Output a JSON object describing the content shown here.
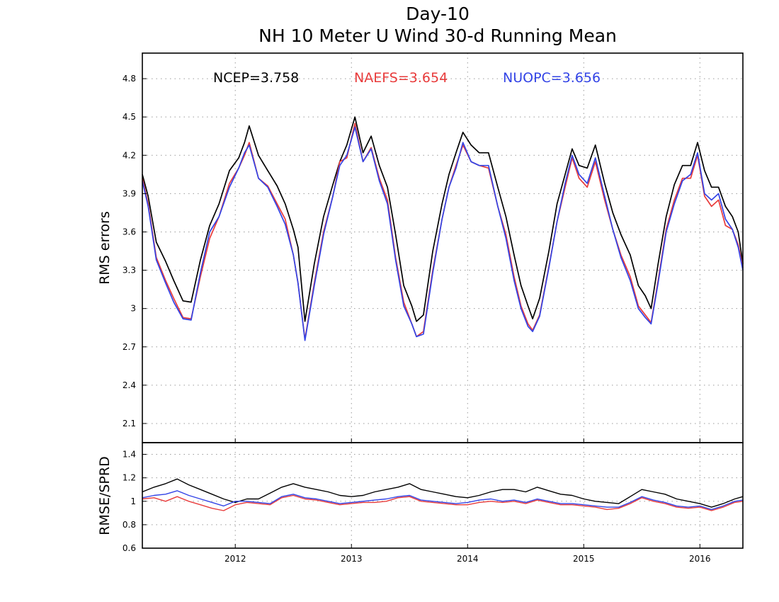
{
  "chart_data": [
    {
      "type": "line",
      "title": "Day-10",
      "subtitle": "NH 10 Meter U Wind 30-d Running Mean",
      "ylabel": "RMS errors",
      "xlabel": "",
      "xlim": [
        2011.2,
        2016.37
      ],
      "ylim": [
        1.95,
        5.0
      ],
      "yticks": [
        "2.1",
        "2.4",
        "2.7",
        "3",
        "3.3",
        "3.6",
        "3.9",
        "4.2",
        "4.5",
        "4.8"
      ],
      "xticks": [
        "2012",
        "2013",
        "2014",
        "2015",
        "2016"
      ],
      "grid": true,
      "legend": "top",
      "series": [
        {
          "name": "NCEP",
          "stat_label": "NCEP=3.758",
          "color": "#000000",
          "x": [
            2011.2,
            2011.25,
            2011.32,
            2011.4,
            2011.47,
            2011.55,
            2011.62,
            2011.7,
            2011.78,
            2011.86,
            2011.95,
            2012.03,
            2012.08,
            2012.12,
            2012.2,
            2012.28,
            2012.36,
            2012.43,
            2012.5,
            2012.54,
            2012.6,
            2012.68,
            2012.76,
            2012.84,
            2012.9,
            2012.96,
            2013.03,
            2013.1,
            2013.17,
            2013.24,
            2013.31,
            2013.38,
            2013.45,
            2013.52,
            2013.56,
            2013.62,
            2013.7,
            2013.78,
            2013.84,
            2013.9,
            2013.96,
            2014.03,
            2014.1,
            2014.18,
            2014.26,
            2014.33,
            2014.4,
            2014.46,
            2014.52,
            2014.56,
            2014.62,
            2014.7,
            2014.77,
            2014.84,
            2014.9,
            2014.96,
            2015.03,
            2015.1,
            2015.18,
            2015.25,
            2015.32,
            2015.4,
            2015.47,
            2015.53,
            2015.58,
            2015.64,
            2015.71,
            2015.78,
            2015.85,
            2015.92,
            2015.98,
            2016.04,
            2016.1,
            2016.16,
            2016.22,
            2016.28,
            2016.33,
            2016.37
          ],
          "y": [
            4.05,
            3.88,
            3.52,
            3.37,
            3.22,
            3.06,
            3.05,
            3.38,
            3.65,
            3.82,
            4.08,
            4.18,
            4.3,
            4.43,
            4.2,
            4.08,
            3.96,
            3.82,
            3.62,
            3.48,
            2.9,
            3.35,
            3.72,
            3.97,
            4.15,
            4.28,
            4.5,
            4.22,
            4.35,
            4.12,
            3.95,
            3.58,
            3.18,
            3.02,
            2.9,
            2.95,
            3.45,
            3.82,
            4.05,
            4.22,
            4.38,
            4.28,
            4.22,
            4.22,
            3.95,
            3.72,
            3.42,
            3.18,
            3.02,
            2.92,
            3.08,
            3.45,
            3.82,
            4.05,
            4.25,
            4.12,
            4.1,
            4.28,
            3.98,
            3.75,
            3.58,
            3.42,
            3.18,
            3.1,
            3.0,
            3.35,
            3.72,
            3.97,
            4.12,
            4.12,
            4.3,
            4.08,
            3.95,
            3.95,
            3.8,
            3.72,
            3.6,
            3.35
          ]
        },
        {
          "name": "NAEFS",
          "stat_label": "NAEFS=3.654",
          "color": "#e83b3b",
          "x": [
            2011.2,
            2011.25,
            2011.32,
            2011.4,
            2011.47,
            2011.55,
            2011.62,
            2011.7,
            2011.78,
            2011.86,
            2011.95,
            2012.03,
            2012.08,
            2012.12,
            2012.2,
            2012.28,
            2012.36,
            2012.43,
            2012.5,
            2012.54,
            2012.6,
            2012.68,
            2012.76,
            2012.84,
            2012.9,
            2012.96,
            2013.03,
            2013.1,
            2013.17,
            2013.24,
            2013.31,
            2013.38,
            2013.45,
            2013.52,
            2013.56,
            2013.62,
            2013.7,
            2013.78,
            2013.84,
            2013.9,
            2013.96,
            2014.03,
            2014.1,
            2014.18,
            2014.26,
            2014.33,
            2014.4,
            2014.46,
            2014.52,
            2014.56,
            2014.62,
            2014.7,
            2014.77,
            2014.84,
            2014.9,
            2014.96,
            2015.03,
            2015.1,
            2015.18,
            2015.25,
            2015.32,
            2015.4,
            2015.47,
            2015.53,
            2015.58,
            2015.64,
            2015.71,
            2015.78,
            2015.85,
            2015.92,
            2015.98,
            2016.04,
            2016.1,
            2016.16,
            2016.22,
            2016.28,
            2016.33,
            2016.37
          ],
          "y": [
            4.02,
            3.82,
            3.4,
            3.22,
            3.08,
            2.93,
            2.92,
            3.25,
            3.55,
            3.72,
            3.98,
            4.1,
            4.2,
            4.3,
            4.02,
            3.96,
            3.82,
            3.7,
            3.42,
            3.2,
            2.76,
            3.2,
            3.6,
            3.88,
            4.15,
            4.18,
            4.45,
            4.15,
            4.26,
            4.02,
            3.85,
            3.4,
            3.05,
            2.88,
            2.78,
            2.82,
            3.3,
            3.7,
            3.95,
            4.12,
            4.28,
            4.15,
            4.12,
            4.1,
            3.8,
            3.58,
            3.25,
            3.02,
            2.88,
            2.83,
            2.95,
            3.33,
            3.68,
            3.95,
            4.18,
            4.02,
            3.95,
            4.15,
            3.85,
            3.62,
            3.42,
            3.25,
            3.02,
            2.95,
            2.89,
            3.22,
            3.62,
            3.85,
            4.02,
            4.02,
            4.2,
            3.88,
            3.8,
            3.85,
            3.65,
            3.62,
            3.5,
            3.32
          ]
        },
        {
          "name": "NUOPC",
          "stat_label": "NUOPC=3.656",
          "color": "#3344e6",
          "x": [
            2011.2,
            2011.25,
            2011.32,
            2011.4,
            2011.47,
            2011.55,
            2011.62,
            2011.7,
            2011.78,
            2011.86,
            2011.95,
            2012.03,
            2012.08,
            2012.12,
            2012.2,
            2012.28,
            2012.36,
            2012.43,
            2012.5,
            2012.54,
            2012.6,
            2012.68,
            2012.76,
            2012.84,
            2012.9,
            2012.96,
            2013.03,
            2013.1,
            2013.17,
            2013.24,
            2013.31,
            2013.38,
            2013.45,
            2013.52,
            2013.56,
            2013.62,
            2013.7,
            2013.78,
            2013.84,
            2013.9,
            2013.96,
            2014.03,
            2014.1,
            2014.18,
            2014.26,
            2014.33,
            2014.4,
            2014.46,
            2014.52,
            2014.56,
            2014.62,
            2014.7,
            2014.77,
            2014.84,
            2014.9,
            2014.96,
            2015.03,
            2015.1,
            2015.18,
            2015.25,
            2015.32,
            2015.4,
            2015.47,
            2015.53,
            2015.58,
            2015.64,
            2015.71,
            2015.78,
            2015.85,
            2015.92,
            2015.98,
            2016.04,
            2016.1,
            2016.16,
            2016.22,
            2016.28,
            2016.33,
            2016.37
          ],
          "y": [
            4.0,
            3.8,
            3.38,
            3.2,
            3.05,
            2.92,
            2.91,
            3.28,
            3.6,
            3.72,
            3.95,
            4.1,
            4.22,
            4.28,
            4.02,
            3.95,
            3.8,
            3.66,
            3.42,
            3.2,
            2.75,
            3.18,
            3.58,
            3.88,
            4.12,
            4.2,
            4.42,
            4.15,
            4.25,
            4.0,
            3.82,
            3.38,
            3.02,
            2.88,
            2.78,
            2.8,
            3.28,
            3.7,
            3.95,
            4.1,
            4.3,
            4.15,
            4.12,
            4.12,
            3.8,
            3.55,
            3.22,
            3.0,
            2.86,
            2.82,
            2.94,
            3.32,
            3.68,
            3.98,
            4.2,
            4.05,
            3.98,
            4.18,
            3.88,
            3.62,
            3.4,
            3.22,
            3.0,
            2.93,
            2.88,
            3.2,
            3.6,
            3.82,
            4.0,
            4.05,
            4.22,
            3.9,
            3.85,
            3.9,
            3.7,
            3.62,
            3.48,
            3.3
          ]
        }
      ]
    },
    {
      "type": "line",
      "title": "",
      "ylabel": "RMSE/SPRD",
      "xlabel": "",
      "xlim": [
        2011.2,
        2016.37
      ],
      "ylim": [
        0.6,
        1.5
      ],
      "yticks": [
        "0.6",
        "0.8",
        "1",
        "1.2",
        "1.4"
      ],
      "xticks": [
        "2012",
        "2013",
        "2014",
        "2015",
        "2016"
      ],
      "grid": true,
      "series": [
        {
          "name": "NCEP",
          "color": "#000000",
          "x": [
            2011.2,
            2011.3,
            2011.4,
            2011.5,
            2011.6,
            2011.7,
            2011.8,
            2011.9,
            2012.0,
            2012.1,
            2012.2,
            2012.3,
            2012.4,
            2012.5,
            2012.6,
            2012.7,
            2012.8,
            2012.9,
            2013.0,
            2013.1,
            2013.2,
            2013.3,
            2013.4,
            2013.5,
            2013.6,
            2013.7,
            2013.8,
            2013.9,
            2014.0,
            2014.1,
            2014.2,
            2014.3,
            2014.4,
            2014.5,
            2014.6,
            2014.7,
            2014.8,
            2014.9,
            2015.0,
            2015.1,
            2015.2,
            2015.3,
            2015.4,
            2015.5,
            2015.6,
            2015.7,
            2015.8,
            2015.9,
            2016.0,
            2016.1,
            2016.2,
            2016.3,
            2016.37
          ],
          "y": [
            1.08,
            1.12,
            1.15,
            1.19,
            1.14,
            1.1,
            1.06,
            1.02,
            0.99,
            1.02,
            1.02,
            1.07,
            1.12,
            1.15,
            1.12,
            1.1,
            1.08,
            1.05,
            1.04,
            1.05,
            1.08,
            1.1,
            1.12,
            1.15,
            1.1,
            1.08,
            1.06,
            1.04,
            1.03,
            1.05,
            1.08,
            1.1,
            1.1,
            1.08,
            1.12,
            1.09,
            1.06,
            1.05,
            1.02,
            1.0,
            0.99,
            0.98,
            1.04,
            1.1,
            1.08,
            1.06,
            1.02,
            1.0,
            0.98,
            0.95,
            0.98,
            1.02,
            1.04
          ]
        },
        {
          "name": "NAEFS",
          "color": "#e83b3b",
          "x": [
            2011.2,
            2011.3,
            2011.4,
            2011.5,
            2011.6,
            2011.7,
            2011.8,
            2011.9,
            2012.0,
            2012.1,
            2012.2,
            2012.3,
            2012.4,
            2012.5,
            2012.6,
            2012.7,
            2012.8,
            2012.9,
            2013.0,
            2013.1,
            2013.2,
            2013.3,
            2013.4,
            2013.5,
            2013.6,
            2013.7,
            2013.8,
            2013.9,
            2014.0,
            2014.1,
            2014.2,
            2014.3,
            2014.4,
            2014.5,
            2014.6,
            2014.7,
            2014.8,
            2014.9,
            2015.0,
            2015.1,
            2015.2,
            2015.3,
            2015.4,
            2015.5,
            2015.6,
            2015.7,
            2015.8,
            2015.9,
            2016.0,
            2016.1,
            2016.2,
            2016.3,
            2016.37
          ],
          "y": [
            1.02,
            1.03,
            1.0,
            1.04,
            1.0,
            0.97,
            0.94,
            0.92,
            0.97,
            0.99,
            0.98,
            0.97,
            1.03,
            1.05,
            1.02,
            1.01,
            0.99,
            0.97,
            0.98,
            0.99,
            0.99,
            1.0,
            1.03,
            1.04,
            1.0,
            0.99,
            0.98,
            0.97,
            0.97,
            0.99,
            1.0,
            0.99,
            1.0,
            0.98,
            1.01,
            0.99,
            0.97,
            0.97,
            0.96,
            0.95,
            0.93,
            0.94,
            0.98,
            1.03,
            1.0,
            0.98,
            0.95,
            0.94,
            0.95,
            0.92,
            0.95,
            0.99,
            1.0
          ]
        },
        {
          "name": "NUOPC",
          "color": "#3344e6",
          "x": [
            2011.2,
            2011.3,
            2011.4,
            2011.5,
            2011.6,
            2011.7,
            2011.8,
            2011.9,
            2012.0,
            2012.1,
            2012.2,
            2012.3,
            2012.4,
            2012.5,
            2012.6,
            2012.7,
            2012.8,
            2012.9,
            2013.0,
            2013.1,
            2013.2,
            2013.3,
            2013.4,
            2013.5,
            2013.6,
            2013.7,
            2013.8,
            2013.9,
            2014.0,
            2014.1,
            2014.2,
            2014.3,
            2014.4,
            2014.5,
            2014.6,
            2014.7,
            2014.8,
            2014.9,
            2015.0,
            2015.1,
            2015.2,
            2015.3,
            2015.4,
            2015.5,
            2015.6,
            2015.7,
            2015.8,
            2015.9,
            2016.0,
            2016.1,
            2016.2,
            2016.3,
            2016.37
          ],
          "y": [
            1.03,
            1.05,
            1.06,
            1.09,
            1.05,
            1.02,
            0.99,
            0.96,
            1.0,
            1.0,
            0.99,
            0.98,
            1.04,
            1.06,
            1.03,
            1.02,
            1.0,
            0.98,
            0.99,
            1.0,
            1.01,
            1.02,
            1.04,
            1.05,
            1.01,
            1.0,
            0.99,
            0.98,
            0.99,
            1.01,
            1.02,
            1.0,
            1.01,
            0.99,
            1.02,
            1.0,
            0.98,
            0.98,
            0.97,
            0.96,
            0.95,
            0.95,
            0.99,
            1.04,
            1.01,
            0.99,
            0.96,
            0.95,
            0.96,
            0.93,
            0.96,
            1.0,
            1.01
          ]
        }
      ]
    }
  ]
}
